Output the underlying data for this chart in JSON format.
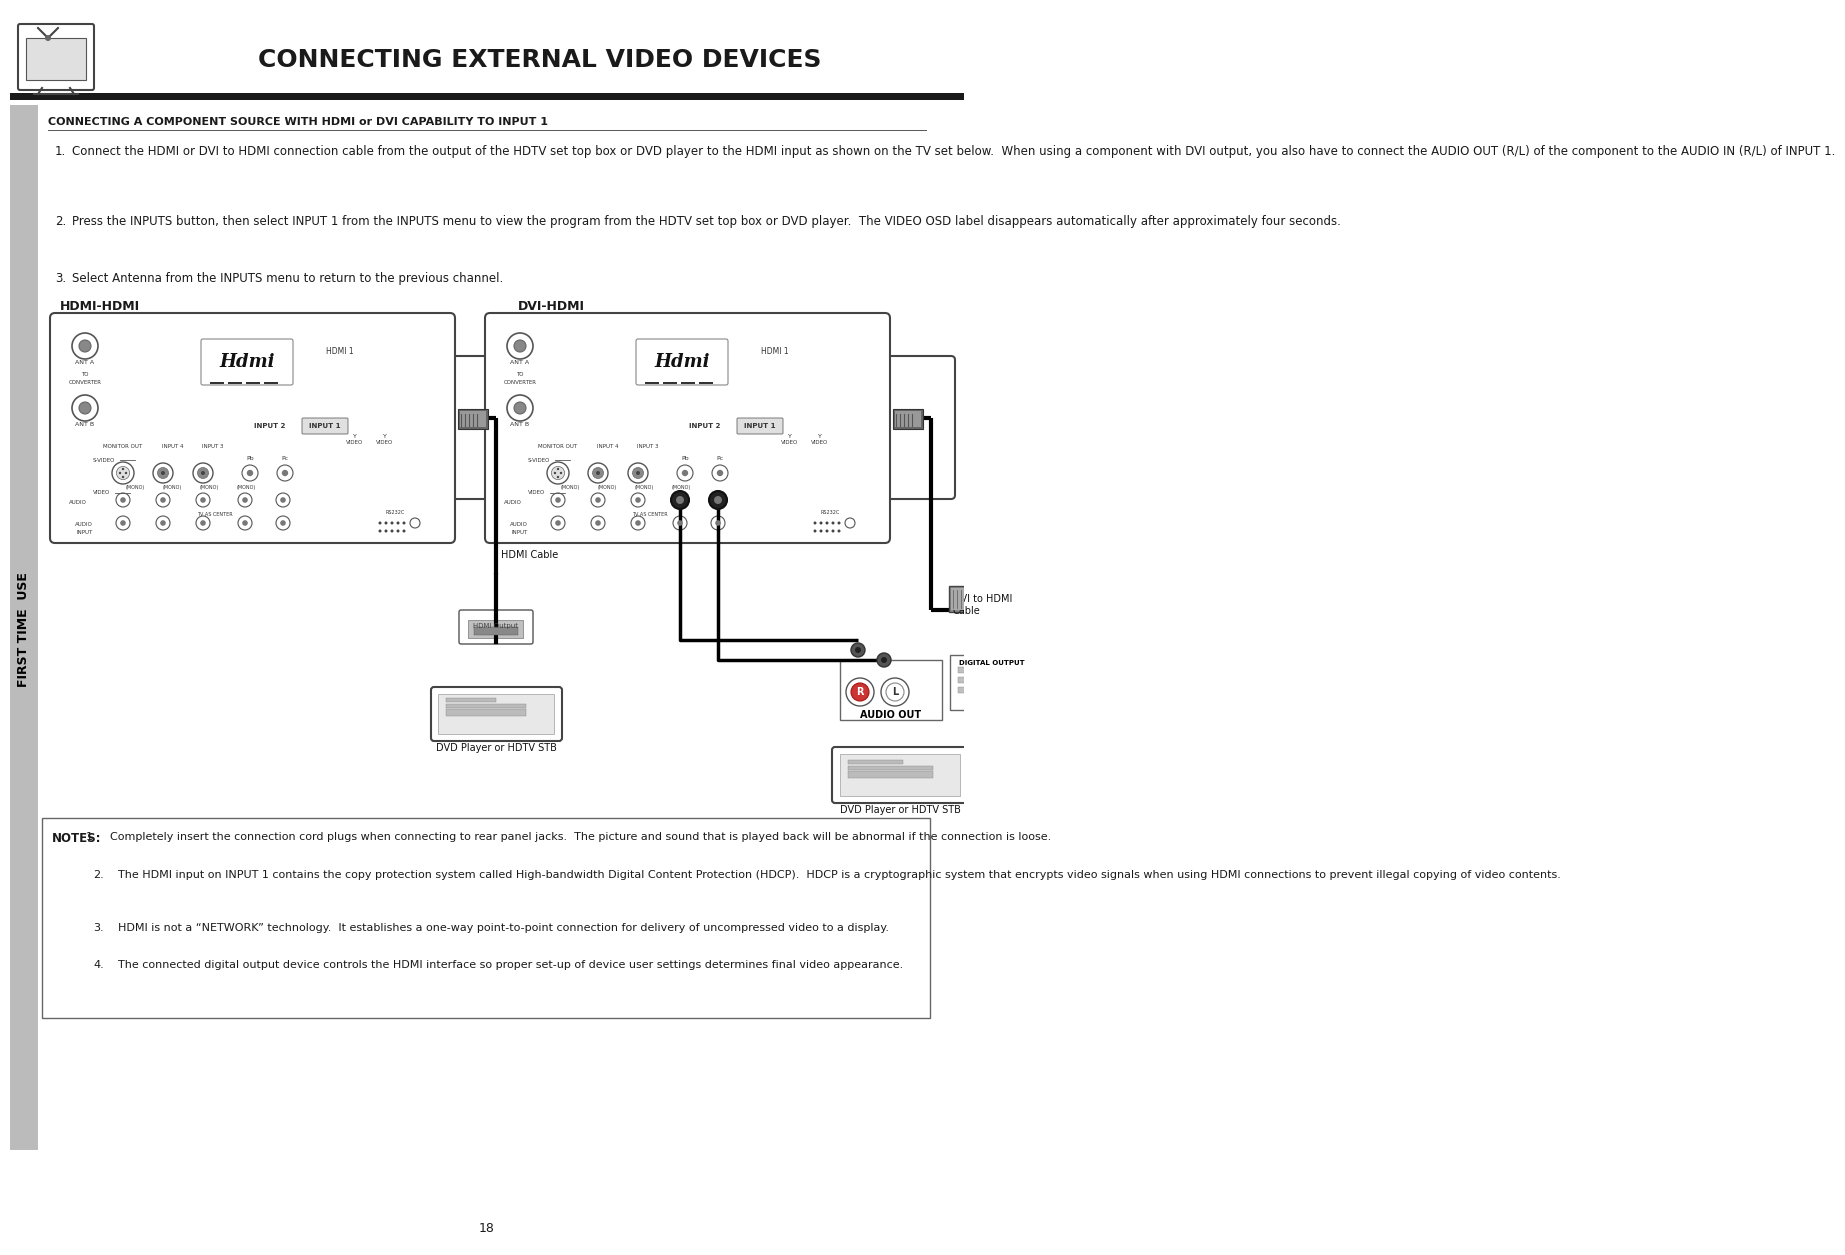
{
  "page_title": "CONNECTING EXTERNAL VIDEO DEVICES",
  "section_title": "CONNECTING A COMPONENT SOURCE WITH HDMI or DVI CAPABILITY TO INPUT 1",
  "step1": "Connect the HDMI or DVI to HDMI connection cable from the output of the HDTV set top box or DVD player to the HDMI input as shown on the TV set below.  When using a component with DVI output, you also have to connect the AUDIO OUT (R/L) of the component to the AUDIO IN (R/L) of INPUT 1.",
  "step2": "Press the INPUTS button, then select INPUT 1 from the INPUTS menu to view the program from the HDTV set top box or DVD player.  The VIDEO OSD label disappears automatically after approximately four seconds.",
  "step3": "Select Antenna from the INPUTS menu to return to the previous channel.",
  "label_hdmi": "HDMI-HDMI",
  "label_dvi": "DVI-HDMI",
  "label_hdmi_cable": "HDMI Cable",
  "label_dvi_cable": "DVI to HDMI\nCable",
  "label_dvd1": "DVD Player or HDTV STB",
  "label_dvd2": "DVD Player or HDTV STB",
  "label_audio_out": "AUDIO OUT",
  "label_digital_output": "DIGITAL OUTPUT",
  "note_title": "NOTES:",
  "note1": "Completely insert the connection cord plugs when connecting to rear panel jacks.  The picture and sound that is played back will be abnormal if the connection is loose.",
  "note2": "The HDMI input on INPUT 1 contains the copy protection system called High-bandwidth Digital Content Protection (HDCP).  HDCP is a cryptographic system that encrypts video signals when using HDMI connections to prevent illegal copying of video contents.",
  "note3": "HDMI is not a “NETWORK” technology.  It establishes a one-way point-to-point connection for delivery of uncompressed video to a display.",
  "note4": "The connected digital output device controls the HDMI interface so proper set-up of device user settings determines final video appearance.",
  "page_number": "18",
  "bg_color": "#ffffff",
  "text_color": "#1a1a1a",
  "sidebar_color": "#bbbbbb"
}
